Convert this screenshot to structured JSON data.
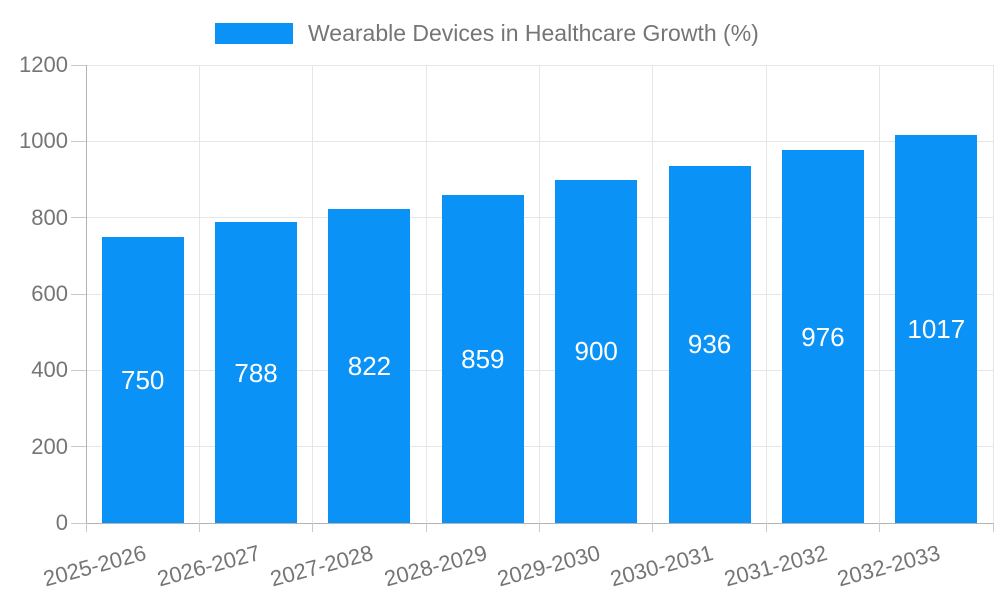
{
  "chart_data": {
    "type": "bar",
    "title": "Wearable Devices in Healthcare Growth (%)",
    "categories": [
      "2025-2026",
      "2026-2027",
      "2027-2028",
      "2028-2029",
      "2029-2030",
      "2030-2031",
      "2031-2032",
      "2032-2033"
    ],
    "values": [
      750,
      788,
      822,
      859,
      900,
      936,
      976,
      1017
    ],
    "xlabel": "",
    "ylabel": "",
    "ylim": [
      0,
      1200
    ],
    "ytick_step": 200,
    "yticks": [
      0,
      200,
      400,
      600,
      800,
      1000,
      1200
    ],
    "grid": true,
    "legend_position": "top-center",
    "x_label_rotation_deg": -15,
    "colors": {
      "bar": "#0a92f7",
      "gridline": "#e6e6e6",
      "axis": "#b3b3b3",
      "tick": "#c9c9c9",
      "tick_text": "#757575",
      "value_label": "#ffffff",
      "background": "#ffffff"
    }
  }
}
